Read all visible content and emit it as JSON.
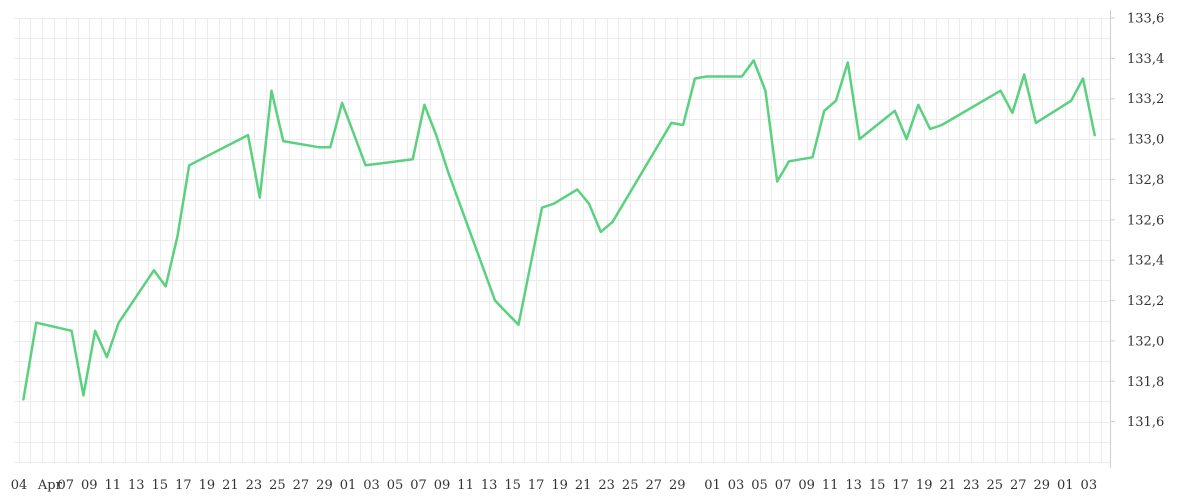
{
  "chart_data": {
    "type": "line",
    "title": "",
    "xlabel": "",
    "ylabel": "",
    "grid": true,
    "y_axis_side": "right",
    "ylim": [
      131.4,
      133.6
    ],
    "y_ticks": [
      "131,6",
      "131,8",
      "132,0",
      "132,2",
      "132,4",
      "132,6",
      "132,8",
      "133,0",
      "133,2",
      "133,4",
      "133,6"
    ],
    "y_tick_values": [
      131.6,
      131.8,
      132.0,
      132.2,
      132.4,
      132.6,
      132.8,
      133.0,
      133.2,
      133.4,
      133.6
    ],
    "x_ticks": [
      "04",
      "Apr",
      "07",
      "09",
      "11",
      "13",
      "15",
      "17",
      "19",
      "21",
      "23",
      "25",
      "27",
      "29",
      "01",
      "03",
      "05",
      "07",
      "09",
      "11",
      "13",
      "15",
      "17",
      "19",
      "21",
      "23",
      "25",
      "27",
      "29",
      "01",
      "03",
      "05",
      "07",
      "09",
      "11",
      "13",
      "15",
      "17",
      "19",
      "21",
      "23",
      "25",
      "27",
      "29",
      "01",
      "03"
    ],
    "x_tick_positions": [
      0,
      0.9,
      2,
      3,
      4,
      5,
      6,
      7,
      8,
      9,
      10,
      11,
      12,
      13,
      14,
      15,
      16,
      17,
      18,
      19,
      20,
      21,
      22,
      23,
      24,
      25,
      26,
      27,
      28,
      29.5,
      30.5,
      31.5,
      32.5,
      33.5,
      34.5,
      35.5,
      36.5,
      37.5,
      38.5,
      39.5,
      40.5,
      41.5,
      42.5,
      43.5,
      44.5,
      45.5
    ],
    "x_range": [
      -0.2,
      46.4
    ],
    "line_color": "#5ad17e",
    "series": [
      {
        "x": [
          0.2,
          0.75,
          2.25,
          2.75,
          3.25,
          3.75,
          4.25,
          5.75,
          6.25,
          6.75,
          7.25,
          9.75,
          10.25,
          10.75,
          11.25,
          12.75,
          13.25,
          13.75,
          14.75,
          16.75,
          17.25,
          17.75,
          18.25,
          20.25,
          20.75,
          21.25,
          22.25,
          22.75,
          23.75,
          24.25,
          24.75,
          25.25,
          27.75,
          28.25,
          28.75,
          29.25,
          30.75,
          31.25,
          31.75,
          32.25,
          32.75,
          33.75,
          34.25,
          34.75,
          35.25,
          35.75,
          37.25,
          37.75,
          38.25,
          38.75,
          39.25,
          41.75,
          42.25,
          42.75,
          43.25,
          44.75,
          45.25,
          45.75
        ],
        "y": [
          131.71,
          132.09,
          132.05,
          131.73,
          132.05,
          131.92,
          132.09,
          132.35,
          132.27,
          132.52,
          132.87,
          133.02,
          132.71,
          133.24,
          132.99,
          132.96,
          132.96,
          133.18,
          132.87,
          132.9,
          133.17,
          133.02,
          132.84,
          132.2,
          132.14,
          132.08,
          132.66,
          132.68,
          132.75,
          132.68,
          132.54,
          132.59,
          133.08,
          133.07,
          133.3,
          133.31,
          133.31,
          133.39,
          133.24,
          132.79,
          132.89,
          132.91,
          133.14,
          133.19,
          133.38,
          133.0,
          133.14,
          133.0,
          133.17,
          133.05,
          133.07,
          133.24,
          133.13,
          133.32,
          133.08,
          133.19,
          133.3,
          133.02
        ]
      }
    ]
  }
}
